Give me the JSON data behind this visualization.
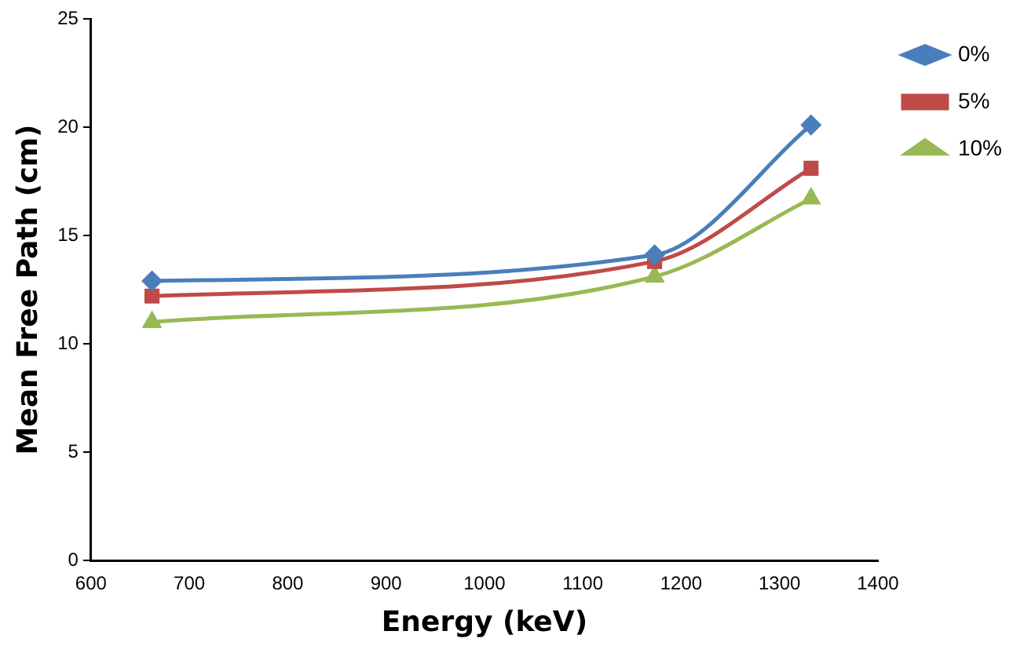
{
  "chart_data": {
    "type": "line",
    "xlabel": "Energy (keV)",
    "ylabel": "Mean Free Path (cm)",
    "x": [
      662,
      1173,
      1332
    ],
    "series": [
      {
        "name": "0%",
        "color": "#4a7ebb",
        "marker": "diamond",
        "values": [
          12.9,
          14.1,
          20.1
        ]
      },
      {
        "name": "5%",
        "color": "#be4b48",
        "marker": "square",
        "values": [
          12.2,
          13.8,
          18.1
        ]
      },
      {
        "name": "10%",
        "color": "#98b954",
        "marker": "triangle",
        "values": [
          11.0,
          13.1,
          16.7
        ]
      }
    ],
    "xlim": [
      600,
      1400
    ],
    "xticks": [
      600,
      700,
      800,
      900,
      1000,
      1100,
      1200,
      1300,
      1400
    ],
    "ylim": [
      0,
      25
    ],
    "yticks": [
      0,
      5,
      10,
      15,
      20,
      25
    ],
    "grid": false,
    "legend": "top right"
  }
}
